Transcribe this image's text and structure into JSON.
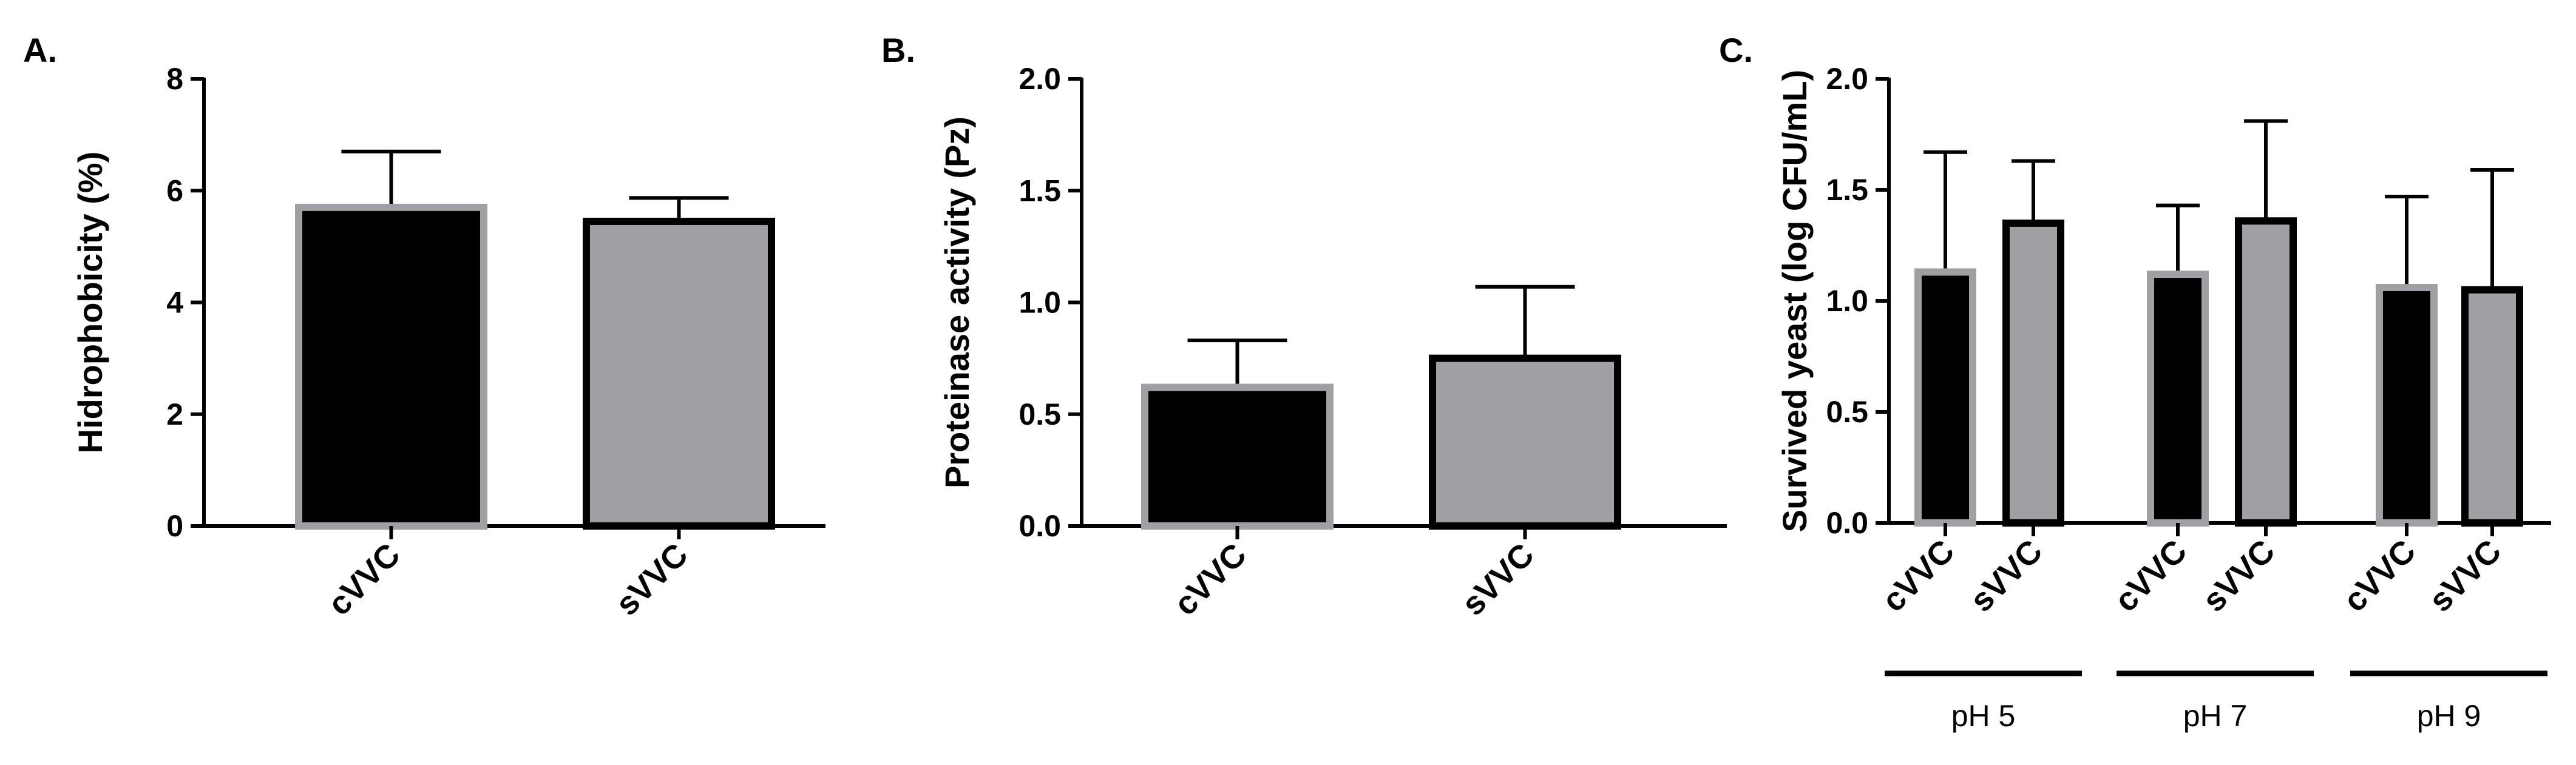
{
  "chart_data": [
    {
      "panel": "A.",
      "type": "bar",
      "categories": [
        "cVVC",
        "sVVC"
      ],
      "values": [
        5.7,
        5.45
      ],
      "errors": [
        1.0,
        0.42
      ],
      "ylabel": "Hidrophobicity (%)",
      "ylim": [
        0,
        8
      ],
      "yticks": [
        "0",
        "2",
        "4",
        "6",
        "8"
      ],
      "bar_fills": [
        "#000000",
        "#a09fa4"
      ],
      "bar_strokes": [
        "#a09fa4",
        "#000000"
      ],
      "grid": false,
      "legend": "none"
    },
    {
      "panel": "B.",
      "type": "bar",
      "categories": [
        "cVVC",
        "sVVC"
      ],
      "values": [
        0.62,
        0.75
      ],
      "errors": [
        0.21,
        0.32
      ],
      "ylabel": "Proteinase activity (Pz)",
      "ylim": [
        0,
        2.0
      ],
      "yticks": [
        "0.0",
        "0.5",
        "1.0",
        "1.5",
        "2.0"
      ],
      "bar_fills": [
        "#000000",
        "#a09fa4"
      ],
      "bar_strokes": [
        "#a09fa4",
        "#000000"
      ],
      "grid": false,
      "legend": "none"
    },
    {
      "panel": "C.",
      "type": "bar",
      "categories": [
        "cVVC",
        "sVVC",
        "cVVC",
        "sVVC",
        "cVVC",
        "sVVC"
      ],
      "groups": [
        {
          "label": "pH 5",
          "members": [
            0,
            1
          ]
        },
        {
          "label": "pH 7",
          "members": [
            2,
            3
          ]
        },
        {
          "label": "pH 9",
          "members": [
            4,
            5
          ]
        }
      ],
      "values": [
        1.13,
        1.35,
        1.12,
        1.36,
        1.06,
        1.05
      ],
      "errors": [
        0.54,
        0.28,
        0.31,
        0.45,
        0.41,
        0.54
      ],
      "ylabel": "Survived yeast (log CFU/mL)",
      "ylim": [
        0,
        2.0
      ],
      "yticks": [
        "0.0",
        "0.5",
        "1.0",
        "1.5",
        "2.0"
      ],
      "bar_fills": [
        "#000000",
        "#a09fa4",
        "#000000",
        "#a09fa4",
        "#000000",
        "#a09fa4"
      ],
      "bar_strokes": [
        "#a09fa4",
        "#000000",
        "#a09fa4",
        "#000000",
        "#a09fa4",
        "#000000"
      ],
      "grid": false,
      "legend": "none"
    }
  ]
}
